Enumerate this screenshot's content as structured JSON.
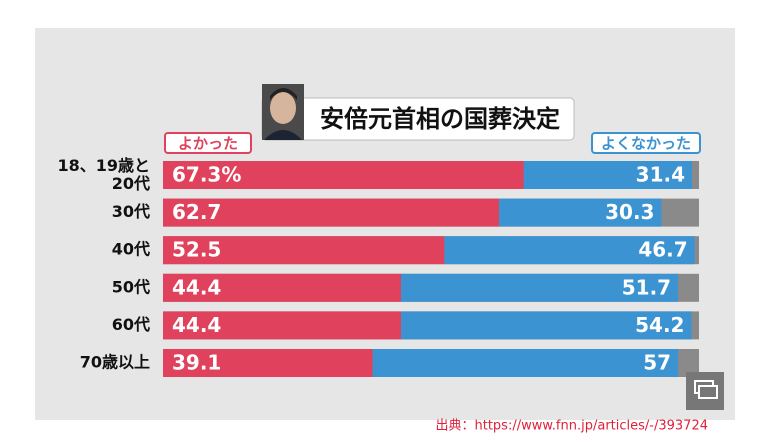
{
  "chart_data": {
    "type": "stacked-bar-horizontal",
    "title": "安倍元首相の国葬決定",
    "categories": [
      "18、19歳と\n20代",
      "30代",
      "40代",
      "50代",
      "60代",
      "70歳以上"
    ],
    "series": [
      {
        "name": "よかった",
        "color": "#e0415c",
        "values": [
          67.3,
          62.7,
          52.5,
          44.4,
          44.4,
          39.1
        ],
        "value_labels": [
          "67.3%",
          "62.7",
          "52.5",
          "44.4",
          "44.4",
          "39.1"
        ]
      },
      {
        "name": "よくなかった",
        "color": "#3c93d2",
        "values": [
          31.4,
          30.3,
          46.7,
          51.7,
          54.2,
          57
        ]
      }
    ],
    "xlim": [
      0,
      100
    ],
    "source": "出典：https://www.fnn.jp/articles/-/393724"
  }
}
